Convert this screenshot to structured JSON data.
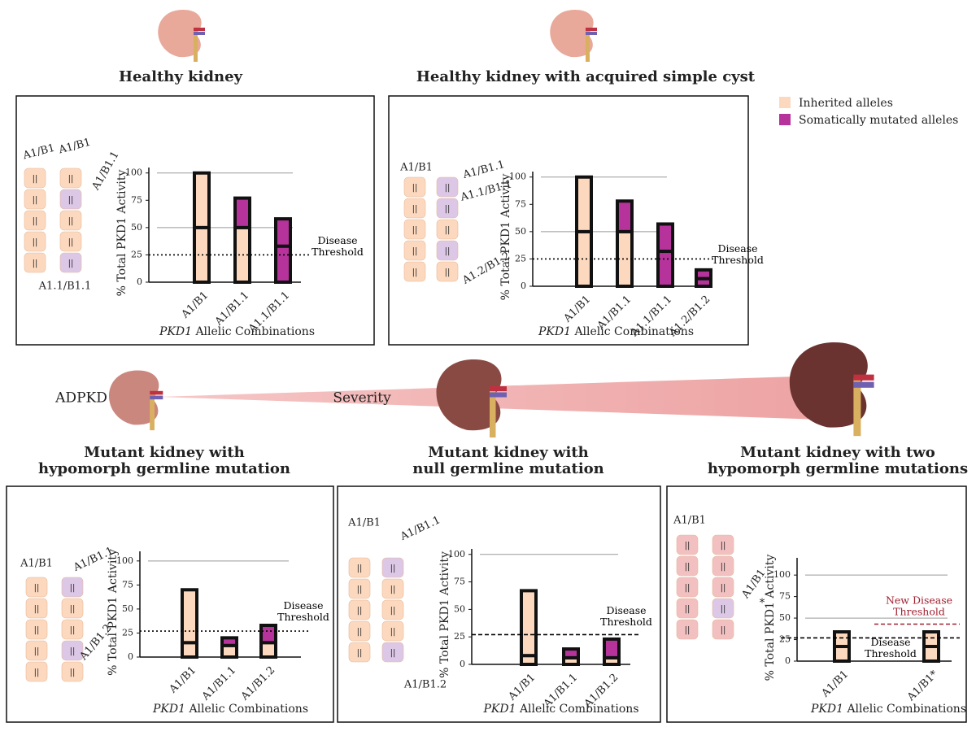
{
  "legend": [
    {
      "name": "Inherited alleles",
      "color": "#fcd9be"
    },
    {
      "name": "Somatically mutated alleles",
      "color": "#b5339a"
    }
  ],
  "severity": {
    "left_label": "ADPKD",
    "label": "Severity"
  },
  "chart_data": [
    {
      "type": "bar",
      "title": "Healthy kidney",
      "y_label": "% Total PKD1 Activity",
      "x_label": "PKD1 Allelic Combinations",
      "categories": [
        "A1/B1",
        "A1/B1.1",
        "A1.1/B1.1"
      ],
      "series": [
        {
          "colors": [
            "#fcd9be",
            "#fcd9be",
            "#b5339a"
          ],
          "values": [
            50,
            50,
            33
          ]
        },
        {
          "colors": [
            "#fcd9be",
            "#b5339a",
            "#b5339a"
          ],
          "values": [
            50,
            27,
            25
          ]
        }
      ],
      "ylim": [
        0,
        105
      ],
      "yticks": [
        0,
        25,
        50,
        75,
        100
      ],
      "grid_ticks": [
        50,
        100
      ],
      "thresholds": [
        {
          "value": 25,
          "label": "Disease Threshold",
          "color": "#000",
          "dash": "2 3"
        }
      ],
      "annotations": [
        "A1/B1",
        "A1/B1",
        "A1/B1.1",
        "A1.1/B1.1"
      ]
    },
    {
      "type": "bar",
      "title": "Healthy kidney with acquired simple cyst",
      "y_label": "% Total PKD1 Activity",
      "x_label": "PKD1 Allelic Combinations",
      "categories": [
        "A1/B1",
        "A1/B1.1",
        "A1.1/B1.1",
        "A1.2/B1.2"
      ],
      "series": [
        {
          "colors": [
            "#fcd9be",
            "#fcd9be",
            "#b5339a",
            "#b5339a"
          ],
          "values": [
            50,
            50,
            32,
            7
          ]
        },
        {
          "colors": [
            "#fcd9be",
            "#b5339a",
            "#b5339a",
            "#b5339a"
          ],
          "values": [
            50,
            28,
            25,
            8
          ]
        }
      ],
      "ylim": [
        0,
        105
      ],
      "yticks": [
        0,
        25,
        50,
        75,
        100
      ],
      "grid_ticks": [
        50,
        100
      ],
      "thresholds": [
        {
          "value": 25,
          "label": "Disease Threshold",
          "color": "#000",
          "dash": "2 3"
        }
      ],
      "annotations": [
        "A1/B1",
        "A1/B1.1",
        "A1.1/B1.1",
        "A1.2/B1.2"
      ]
    },
    {
      "type": "bar",
      "title": "Mutant kidney with hypomorph germline mutation",
      "y_label": "% Total PKD1 Activity",
      "x_label": "PKD1 Allelic Combinations",
      "categories": [
        "A1/B1",
        "A1/B1.1",
        "A1/B1.2"
      ],
      "series": [
        {
          "colors": [
            "#fcd9be",
            "#fcd9be",
            "#fcd9be"
          ],
          "values": [
            15,
            12,
            15
          ]
        },
        {
          "colors": [
            "#fcd9be",
            "#b5339a",
            "#b5339a"
          ],
          "values": [
            55,
            8,
            18
          ]
        }
      ],
      "ylim": [
        0,
        110
      ],
      "yticks": [
        0,
        25,
        50,
        75,
        100
      ],
      "grid_ticks": [
        100
      ],
      "thresholds": [
        {
          "value": 27,
          "label": "Disease Threshold",
          "color": "#000",
          "dash": "2 3"
        }
      ],
      "annotations": [
        "A1/B1",
        "A1/B1.1",
        "A1/B1.2"
      ]
    },
    {
      "type": "bar",
      "title": "Mutant kidney with null germline mutation",
      "y_label": "% Total PKD1 Activity",
      "x_label": "PKD1 Allelic Combinations",
      "categories": [
        "A1/B1",
        "A1/B1.1",
        "A1/B1.2"
      ],
      "series": [
        {
          "colors": [
            "#fcd9be",
            "#fcd9be",
            "#fcd9be"
          ],
          "values": [
            8,
            6,
            6
          ]
        },
        {
          "colors": [
            "#fcd9be",
            "#b5339a",
            "#b5339a"
          ],
          "values": [
            59,
            8,
            17
          ]
        }
      ],
      "ylim": [
        0,
        105
      ],
      "yticks": [
        0,
        25,
        50,
        75,
        100
      ],
      "grid_ticks": [
        100
      ],
      "thresholds": [
        {
          "value": 27,
          "label": "Disease Threshold",
          "color": "#000",
          "dash": "5 3"
        }
      ],
      "annotations": [
        "A1/B1",
        "A1/B1.1",
        "A1/B1.2"
      ]
    },
    {
      "type": "bar",
      "title": "Mutant kidney with two hypomorph germline mutations",
      "y_label": "% Total PKD1 Activity",
      "x_label": "PKD1 Allelic Combinations",
      "categories": [
        "A1/B1",
        "A1/B1*"
      ],
      "series": [
        {
          "colors": [
            "#fcd9be",
            "#fcd9be"
          ],
          "values": [
            17,
            17
          ]
        },
        {
          "colors": [
            "#fcd9be",
            "#fcd9be"
          ],
          "values": [
            17,
            17
          ]
        }
      ],
      "ylim": [
        0,
        120
      ],
      "yticks": [
        0,
        25,
        50,
        75,
        100
      ],
      "grid_ticks": [
        50,
        100
      ],
      "thresholds": [
        {
          "value": 27,
          "label": "Disease Threshold",
          "color": "#000",
          "dash": "5 3"
        },
        {
          "value": 43,
          "label": "New Disease Threshold",
          "color": "#a02030",
          "dash": "5 3"
        }
      ],
      "annotations": [
        "A1/B1",
        "A1/B1",
        "*"
      ]
    }
  ]
}
